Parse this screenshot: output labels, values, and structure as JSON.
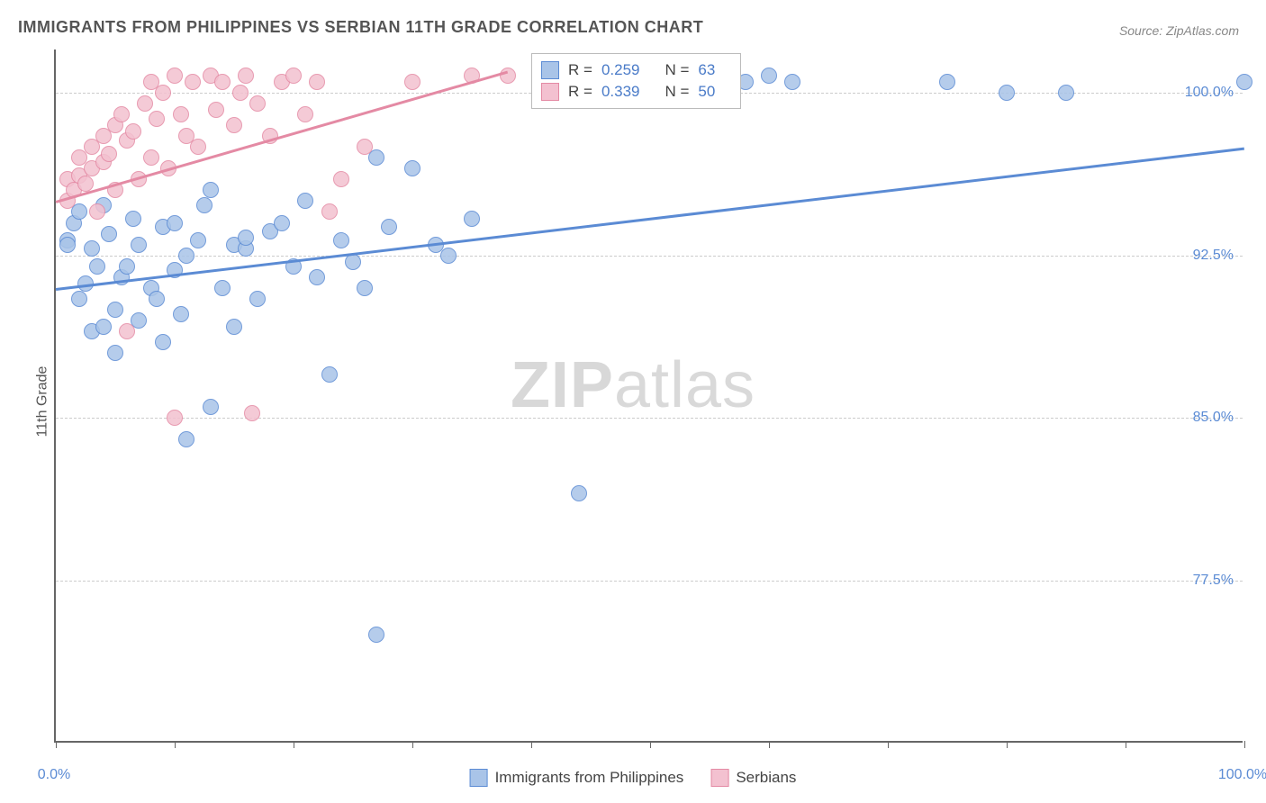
{
  "title": "IMMIGRANTS FROM PHILIPPINES VS SERBIAN 11TH GRADE CORRELATION CHART",
  "source_label": "Source: ZipAtlas.com",
  "y_axis_label": "11th Grade",
  "watermark": {
    "part1": "ZIP",
    "part2": "atlas"
  },
  "chart": {
    "type": "scatter",
    "xlim": [
      0,
      100
    ],
    "ylim": [
      70,
      102
    ],
    "x_ticks": [
      0,
      10,
      20,
      30,
      40,
      50,
      60,
      70,
      80,
      90,
      100
    ],
    "x_tick_labels": {
      "0": "0.0%",
      "100": "100.0%"
    },
    "y_gridlines": [
      77.5,
      85.0,
      92.5,
      100.0
    ],
    "y_tick_labels": [
      "77.5%",
      "85.0%",
      "92.5%",
      "100.0%"
    ],
    "background_color": "#ffffff",
    "grid_color": "#cccccc",
    "axis_color": "#666666",
    "marker_radius": 9,
    "marker_stroke_width": 1.5,
    "marker_fill_opacity": 0.35
  },
  "series": [
    {
      "name": "Immigrants from Philippines",
      "r": "0.259",
      "n": "63",
      "color_stroke": "#5b8bd4",
      "color_fill": "#a9c4e8",
      "trend": {
        "x1": 0,
        "y1": 91.0,
        "x2": 100,
        "y2": 97.5
      },
      "points": [
        [
          1,
          93.2
        ],
        [
          1,
          93.0
        ],
        [
          1.5,
          94.0
        ],
        [
          2,
          90.5
        ],
        [
          2,
          94.5
        ],
        [
          2.5,
          91.2
        ],
        [
          3,
          92.8
        ],
        [
          3,
          89.0
        ],
        [
          3.5,
          92.0
        ],
        [
          4,
          94.8
        ],
        [
          4,
          89.2
        ],
        [
          4.5,
          93.5
        ],
        [
          5,
          90.0
        ],
        [
          5,
          88.0
        ],
        [
          5.5,
          91.5
        ],
        [
          6,
          92.0
        ],
        [
          6.5,
          94.2
        ],
        [
          7,
          89.5
        ],
        [
          7,
          93.0
        ],
        [
          8,
          91.0
        ],
        [
          8.5,
          90.5
        ],
        [
          9,
          93.8
        ],
        [
          9,
          88.5
        ],
        [
          10,
          94.0
        ],
        [
          10,
          91.8
        ],
        [
          10.5,
          89.8
        ],
        [
          11,
          92.5
        ],
        [
          11,
          84.0
        ],
        [
          12,
          93.2
        ],
        [
          12.5,
          94.8
        ],
        [
          13,
          95.5
        ],
        [
          13,
          85.5
        ],
        [
          14,
          91.0
        ],
        [
          15,
          93.0
        ],
        [
          15,
          89.2
        ],
        [
          16,
          92.8
        ],
        [
          16,
          93.3
        ],
        [
          17,
          90.5
        ],
        [
          18,
          93.6
        ],
        [
          19,
          94.0
        ],
        [
          20,
          92.0
        ],
        [
          21,
          95.0
        ],
        [
          22,
          91.5
        ],
        [
          23,
          87.0
        ],
        [
          24,
          93.2
        ],
        [
          25,
          92.2
        ],
        [
          26,
          91.0
        ],
        [
          27,
          97.0
        ],
        [
          27,
          75.0
        ],
        [
          28,
          93.8
        ],
        [
          30,
          96.5
        ],
        [
          32,
          93.0
        ],
        [
          33,
          92.5
        ],
        [
          35,
          94.2
        ],
        [
          44,
          81.5
        ],
        [
          55,
          100.5
        ],
        [
          58,
          100.5
        ],
        [
          60,
          100.8
        ],
        [
          62,
          100.5
        ],
        [
          75,
          100.5
        ],
        [
          80,
          100.0
        ],
        [
          85,
          100.0
        ],
        [
          100,
          100.5
        ]
      ]
    },
    {
      "name": "Serbians",
      "r": "0.339",
      "n": "50",
      "color_stroke": "#e48aa4",
      "color_fill": "#f3c1d0",
      "trend": {
        "x1": 0,
        "y1": 95.0,
        "x2": 38,
        "y2": 101.0
      },
      "points": [
        [
          1,
          95.0
        ],
        [
          1,
          96.0
        ],
        [
          1.5,
          95.5
        ],
        [
          2,
          96.2
        ],
        [
          2,
          97.0
        ],
        [
          2.5,
          95.8
        ],
        [
          3,
          96.5
        ],
        [
          3,
          97.5
        ],
        [
          3.5,
          94.5
        ],
        [
          4,
          98.0
        ],
        [
          4,
          96.8
        ],
        [
          4.5,
          97.2
        ],
        [
          5,
          98.5
        ],
        [
          5,
          95.5
        ],
        [
          5.5,
          99.0
        ],
        [
          6,
          97.8
        ],
        [
          6,
          89.0
        ],
        [
          6.5,
          98.2
        ],
        [
          7,
          96.0
        ],
        [
          7.5,
          99.5
        ],
        [
          8,
          100.5
        ],
        [
          8,
          97.0
        ],
        [
          8.5,
          98.8
        ],
        [
          9,
          100.0
        ],
        [
          9.5,
          96.5
        ],
        [
          10,
          100.8
        ],
        [
          10,
          85.0
        ],
        [
          10.5,
          99.0
        ],
        [
          11,
          98.0
        ],
        [
          11.5,
          100.5
        ],
        [
          12,
          97.5
        ],
        [
          13,
          100.8
        ],
        [
          13.5,
          99.2
        ],
        [
          14,
          100.5
        ],
        [
          15,
          98.5
        ],
        [
          15.5,
          100.0
        ],
        [
          16,
          100.8
        ],
        [
          16.5,
          85.2
        ],
        [
          17,
          99.5
        ],
        [
          18,
          98.0
        ],
        [
          19,
          100.5
        ],
        [
          20,
          100.8
        ],
        [
          21,
          99.0
        ],
        [
          22,
          100.5
        ],
        [
          23,
          94.5
        ],
        [
          24,
          96.0
        ],
        [
          26,
          97.5
        ],
        [
          30,
          100.5
        ],
        [
          35,
          100.8
        ],
        [
          38,
          100.8
        ]
      ]
    }
  ],
  "bottom_legend": {
    "items": [
      {
        "label": "Immigrants from Philippines",
        "series": 0
      },
      {
        "label": "Serbians",
        "series": 1
      }
    ]
  },
  "stats_box": {
    "r_prefix": "R = ",
    "n_prefix": "N = "
  }
}
